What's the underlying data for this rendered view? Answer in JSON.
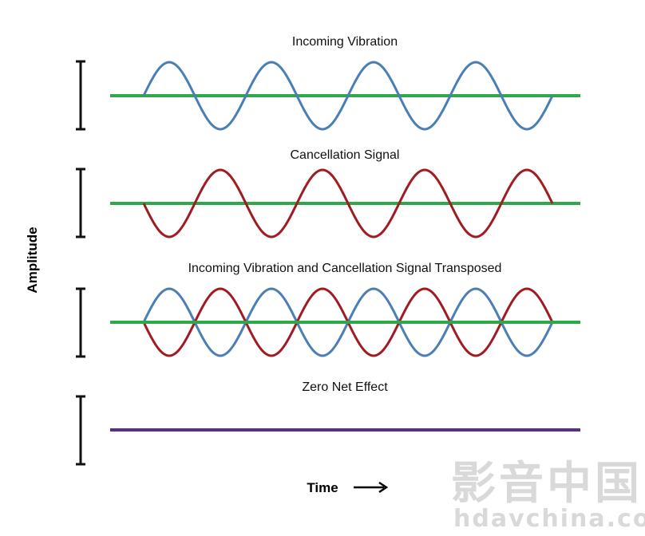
{
  "panels": [
    {
      "title": "Incoming Vibration",
      "signals": [
        "incoming"
      ]
    },
    {
      "title": "Cancellation Signal",
      "signals": [
        "cancellation"
      ]
    },
    {
      "title": "Incoming Vibration and Cancellation Signal Transposed",
      "signals": [
        "incoming",
        "cancellation"
      ]
    },
    {
      "title": "Zero Net Effect",
      "signals": []
    }
  ],
  "y_axis_label": "Amplitude",
  "x_axis_label": "Time",
  "x_axis_arrow": "⟶",
  "watermark": {
    "logo_text": "影音中国",
    "url_text": "hdavchina.com"
  },
  "colors": {
    "incoming": "#4a7fb5",
    "cancellation": "#a01c24",
    "baseline": "#2ea84a",
    "net_effect": "#5b2d8a",
    "bracket": "#111111"
  }
}
